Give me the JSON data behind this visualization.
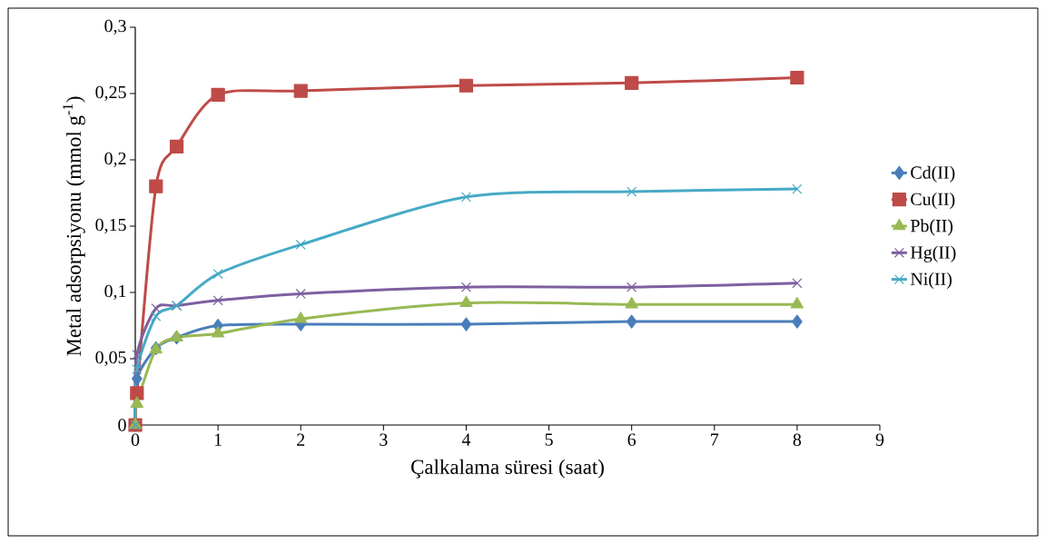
{
  "chart_data": {
    "type": "line",
    "xlabel": "Çalkalama süresi (saat)",
    "ylabel": "Metal adsorpsiyonu (mmol g$^{-1}$)",
    "x": [
      0,
      0.02,
      0.25,
      0.5,
      1,
      2,
      4,
      6,
      8
    ],
    "series": [
      {
        "name": "Cd(II)",
        "color": "#4a7ebb",
        "marker": "diamond",
        "values": [
          0,
          0.035,
          0.058,
          0.066,
          0.075,
          0.076,
          0.076,
          0.078,
          0.078
        ]
      },
      {
        "name": "Cu(II)",
        "color": "#be4b48",
        "marker": "square",
        "values": [
          0,
          0.024,
          0.18,
          0.21,
          0.249,
          0.252,
          0.256,
          0.258,
          0.262
        ]
      },
      {
        "name": "Pb(II)",
        "color": "#98b954",
        "marker": "triangle",
        "values": [
          0,
          0.016,
          0.057,
          0.066,
          0.069,
          0.08,
          0.092,
          0.091,
          0.091
        ]
      },
      {
        "name": "Hg(II)",
        "color": "#7d60a0",
        "marker": "cross",
        "values": [
          0,
          0.053,
          0.088,
          0.09,
          0.094,
          0.099,
          0.104,
          0.104,
          0.107
        ]
      },
      {
        "name": "Ni(II)",
        "color": "#46aac5",
        "marker": "cross",
        "values": [
          0,
          0.042,
          0.082,
          0.09,
          0.114,
          0.136,
          0.172,
          0.176,
          0.178
        ]
      }
    ],
    "xlim": [
      0,
      9
    ],
    "xticks": [
      0,
      1,
      2,
      3,
      4,
      5,
      6,
      7,
      8,
      9
    ],
    "ylim": [
      0,
      0.3
    ],
    "yticks": [
      0,
      {
        "value": 0.05,
        "label": "0,05"
      },
      {
        "value": 0.1,
        "label": "0,1"
      },
      {
        "value": 0.15,
        "label": "0,15"
      },
      {
        "value": 0.2,
        "label": "0,2"
      },
      {
        "value": 0.25,
        "label": "0,25"
      },
      {
        "value": 0.3,
        "label": "0,3"
      }
    ],
    "grid": false,
    "legend": "right",
    "line_style": "solid"
  }
}
